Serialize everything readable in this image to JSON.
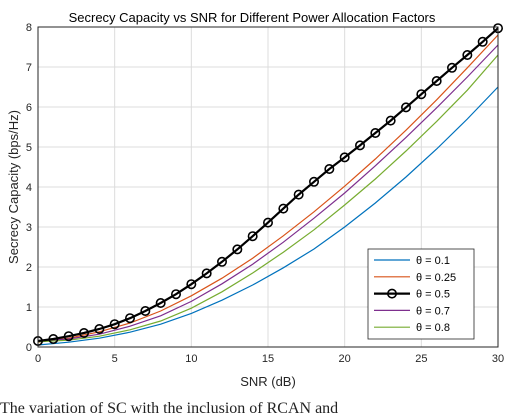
{
  "chart_data": {
    "type": "line",
    "title": "Secrecy Capacity vs SNR for Different Power Allocation Factors",
    "xlabel": "SNR (dB)",
    "ylabel": "Secrecy Capacity (bps/Hz)",
    "xlim": [
      0,
      30
    ],
    "ylim": [
      0,
      8
    ],
    "xticks": [
      0,
      5,
      10,
      15,
      20,
      25,
      30
    ],
    "yticks": [
      0,
      1,
      2,
      3,
      4,
      5,
      6,
      7,
      8
    ],
    "grid": true,
    "legend_position": "bottom-right",
    "x": [
      0,
      2,
      4,
      6,
      8,
      10,
      12,
      14,
      16,
      18,
      20,
      22,
      24,
      26,
      28,
      30
    ],
    "series": [
      {
        "name": "θ = 0.1",
        "color": "#0072BD",
        "marker": "none",
        "values": [
          0.05,
          0.12,
          0.22,
          0.37,
          0.57,
          0.84,
          1.17,
          1.55,
          1.98,
          2.45,
          3.0,
          3.6,
          4.25,
          4.95,
          5.7,
          6.5
        ]
      },
      {
        "name": "θ = 0.25",
        "color": "#D95319",
        "marker": "none",
        "values": [
          0.12,
          0.22,
          0.38,
          0.6,
          0.9,
          1.28,
          1.72,
          2.22,
          2.78,
          3.38,
          4.02,
          4.7,
          5.42,
          6.18,
          6.98,
          7.8
        ]
      },
      {
        "name": "θ = 0.5",
        "color": "#000000",
        "marker": "circle",
        "x": [
          0,
          1,
          2,
          3,
          4,
          5,
          6,
          7,
          8,
          9,
          10,
          11,
          12,
          13,
          14,
          15,
          16,
          17,
          18,
          19,
          20,
          21,
          22,
          23,
          24,
          25,
          26,
          27,
          28,
          29,
          30
        ],
        "values": [
          0.15,
          0.2,
          0.27,
          0.35,
          0.45,
          0.57,
          0.72,
          0.9,
          1.1,
          1.32,
          1.57,
          1.84,
          2.13,
          2.44,
          2.77,
          3.11,
          3.46,
          3.81,
          4.13,
          4.45,
          4.74,
          5.04,
          5.35,
          5.66,
          5.99,
          6.32,
          6.65,
          6.98,
          7.3,
          7.63,
          7.97
        ]
      },
      {
        "name": "θ = 0.7",
        "color": "#7E2F8E",
        "marker": "none",
        "values": [
          0.14,
          0.2,
          0.32,
          0.52,
          0.78,
          1.14,
          1.58,
          2.07,
          2.62,
          3.22,
          3.85,
          4.53,
          5.24,
          5.98,
          6.75,
          7.55
        ]
      },
      {
        "name": "θ = 0.8",
        "color": "#77AC30",
        "marker": "none",
        "values": [
          0.13,
          0.17,
          0.27,
          0.43,
          0.65,
          0.97,
          1.38,
          1.85,
          2.37,
          2.93,
          3.55,
          4.2,
          4.9,
          5.64,
          6.42,
          7.3
        ]
      }
    ]
  },
  "caption": "The variation of SC with the inclusion of RCAN and"
}
